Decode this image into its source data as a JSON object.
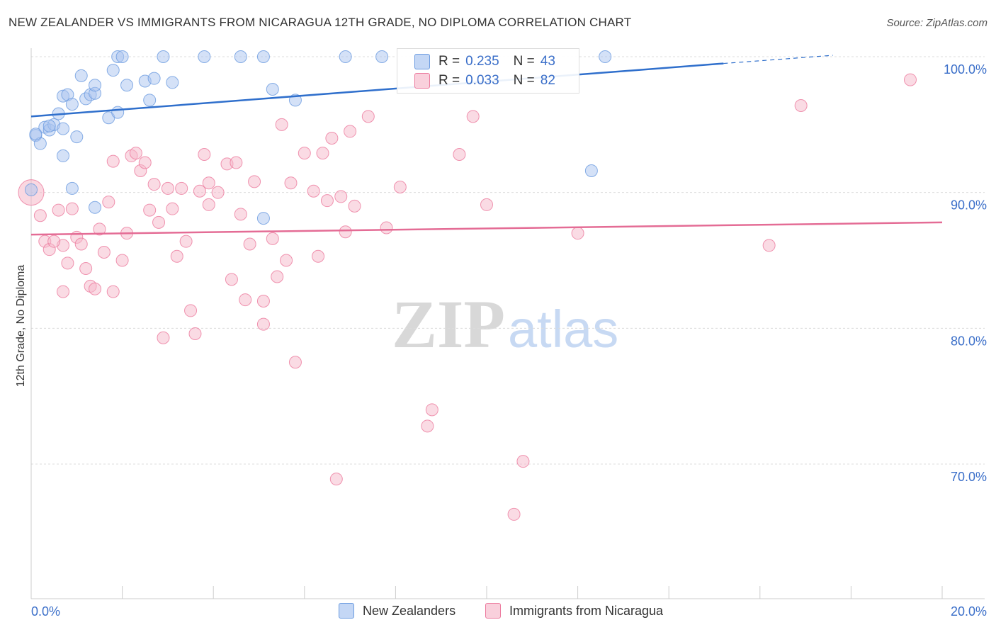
{
  "title": "NEW ZEALANDER VS IMMIGRANTS FROM NICARAGUA 12TH GRADE, NO DIPLOMA CORRELATION CHART",
  "source": "Source: ZipAtlas.com",
  "watermark": {
    "zip": "ZIP",
    "atlas": "atlas"
  },
  "legend_top": [
    {
      "r_label": "R =",
      "r_value": "0.235",
      "n_label": "N =",
      "n_value": "43",
      "color": "#a9c4ef"
    },
    {
      "r_label": "R =",
      "r_value": "0.033",
      "n_label": "N =",
      "n_value": "82",
      "color": "#f5b8c9"
    }
  ],
  "legend_bottom": [
    {
      "label": "New Zealanders",
      "color": "#a9c4ef"
    },
    {
      "label": "Immigrants from Nicaragua",
      "color": "#f5b8c9"
    }
  ],
  "chart_data": {
    "type": "scatter",
    "title": "NEW ZEALANDER VS IMMIGRANTS FROM NICARAGUA 12TH GRADE, NO DIPLOMA CORRELATION CHART",
    "xlabel": "",
    "ylabel": "12th Grade, No Diploma",
    "xlim": [
      0,
      20
    ],
    "ylim": [
      60,
      101.5
    ],
    "x_tick_labels": [
      "0.0%",
      "20.0%"
    ],
    "y_ticks": [
      70,
      80,
      90,
      100
    ],
    "y_tick_labels": [
      "70.0%",
      "80.0%",
      "90.0%",
      "100.0%"
    ],
    "grid": true,
    "legend_position": "top-center",
    "series": [
      {
        "name": "New Zealanders",
        "color": "#6b9be0",
        "fill": "#a9c4ef",
        "r": 0.235,
        "n": 43,
        "trend": {
          "x0": 0.0,
          "y0": 95.6,
          "x1": 15.2,
          "y1": 99.5,
          "dash_x1": 17.6,
          "dash_y1": 100.1
        },
        "points": [
          [
            1.9,
            100.0
          ],
          [
            2.0,
            100.0
          ],
          [
            2.9,
            100.0
          ],
          [
            3.8,
            100.0
          ],
          [
            4.6,
            100.0
          ],
          [
            5.1,
            100.0
          ],
          [
            6.9,
            100.0
          ],
          [
            7.7,
            100.0
          ],
          [
            12.6,
            100.0
          ],
          [
            0.0,
            90.2
          ],
          [
            0.1,
            94.2
          ],
          [
            0.2,
            93.6
          ],
          [
            0.3,
            94.8
          ],
          [
            0.4,
            94.6
          ],
          [
            0.5,
            95.0
          ],
          [
            0.6,
            95.8
          ],
          [
            0.7,
            94.7
          ],
          [
            0.7,
            97.1
          ],
          [
            0.8,
            97.2
          ],
          [
            0.9,
            96.5
          ],
          [
            1.0,
            94.1
          ],
          [
            1.1,
            98.6
          ],
          [
            1.2,
            96.9
          ],
          [
            1.3,
            97.2
          ],
          [
            1.4,
            97.3
          ],
          [
            1.4,
            97.9
          ],
          [
            1.7,
            95.5
          ],
          [
            1.8,
            99.0
          ],
          [
            1.9,
            95.9
          ],
          [
            2.1,
            97.9
          ],
          [
            2.5,
            98.2
          ],
          [
            2.6,
            96.8
          ],
          [
            2.7,
            98.4
          ],
          [
            3.1,
            98.1
          ],
          [
            5.3,
            97.6
          ],
          [
            5.8,
            96.8
          ],
          [
            0.7,
            92.7
          ],
          [
            0.9,
            90.3
          ],
          [
            1.4,
            88.9
          ],
          [
            5.1,
            88.1
          ],
          [
            12.3,
            91.6
          ],
          [
            0.1,
            94.3
          ],
          [
            0.4,
            94.9
          ]
        ]
      },
      {
        "name": "Immigrants from Nicaragua",
        "color": "#ec7a9e",
        "fill": "#f5b8c9",
        "r": 0.033,
        "n": 82,
        "trend": {
          "x0": 0.0,
          "y0": 86.9,
          "x1": 20.0,
          "y1": 87.8
        },
        "points": [
          [
            0.0,
            90.0
          ],
          [
            0.2,
            88.3
          ],
          [
            0.3,
            86.4
          ],
          [
            0.4,
            85.8
          ],
          [
            0.6,
            88.7
          ],
          [
            0.7,
            82.7
          ],
          [
            0.7,
            86.1
          ],
          [
            0.8,
            84.8
          ],
          [
            0.9,
            88.8
          ],
          [
            1.0,
            86.7
          ],
          [
            1.1,
            86.2
          ],
          [
            1.2,
            84.4
          ],
          [
            1.3,
            83.1
          ],
          [
            1.4,
            82.9
          ],
          [
            1.5,
            87.3
          ],
          [
            1.6,
            85.6
          ],
          [
            1.7,
            89.3
          ],
          [
            1.8,
            92.3
          ],
          [
            1.8,
            82.7
          ],
          [
            2.0,
            85.0
          ],
          [
            2.1,
            87.0
          ],
          [
            2.2,
            92.7
          ],
          [
            2.3,
            92.9
          ],
          [
            2.4,
            91.6
          ],
          [
            2.5,
            92.2
          ],
          [
            2.6,
            88.7
          ],
          [
            2.7,
            90.6
          ],
          [
            2.8,
            87.8
          ],
          [
            2.9,
            79.3
          ],
          [
            3.0,
            90.3
          ],
          [
            3.1,
            88.8
          ],
          [
            3.2,
            85.3
          ],
          [
            3.3,
            90.3
          ],
          [
            3.4,
            86.4
          ],
          [
            3.5,
            81.3
          ],
          [
            3.6,
            79.6
          ],
          [
            3.7,
            90.1
          ],
          [
            3.8,
            92.8
          ],
          [
            3.9,
            89.1
          ],
          [
            3.9,
            90.7
          ],
          [
            4.1,
            90.0
          ],
          [
            4.3,
            92.1
          ],
          [
            4.4,
            83.6
          ],
          [
            4.5,
            92.2
          ],
          [
            4.6,
            88.4
          ],
          [
            4.7,
            82.1
          ],
          [
            4.8,
            86.2
          ],
          [
            4.9,
            90.8
          ],
          [
            5.1,
            82.0
          ],
          [
            5.1,
            80.3
          ],
          [
            5.3,
            86.6
          ],
          [
            5.4,
            83.8
          ],
          [
            5.5,
            95.0
          ],
          [
            5.6,
            85.0
          ],
          [
            5.7,
            90.7
          ],
          [
            5.8,
            77.5
          ],
          [
            6.0,
            92.9
          ],
          [
            6.2,
            90.1
          ],
          [
            6.3,
            85.3
          ],
          [
            6.4,
            92.9
          ],
          [
            6.5,
            89.4
          ],
          [
            6.6,
            94.0
          ],
          [
            6.7,
            68.9
          ],
          [
            6.8,
            89.7
          ],
          [
            6.9,
            87.1
          ],
          [
            7.0,
            94.5
          ],
          [
            7.1,
            89.0
          ],
          [
            7.4,
            95.6
          ],
          [
            7.8,
            87.4
          ],
          [
            8.1,
            90.4
          ],
          [
            8.7,
            72.8
          ],
          [
            8.8,
            74.0
          ],
          [
            9.4,
            92.8
          ],
          [
            9.7,
            95.6
          ],
          [
            10.0,
            89.1
          ],
          [
            10.6,
            66.3
          ],
          [
            10.8,
            70.2
          ],
          [
            12.0,
            87.0
          ],
          [
            16.2,
            86.1
          ],
          [
            16.9,
            96.4
          ],
          [
            19.3,
            98.3
          ],
          [
            0.5,
            86.4
          ]
        ]
      }
    ]
  }
}
